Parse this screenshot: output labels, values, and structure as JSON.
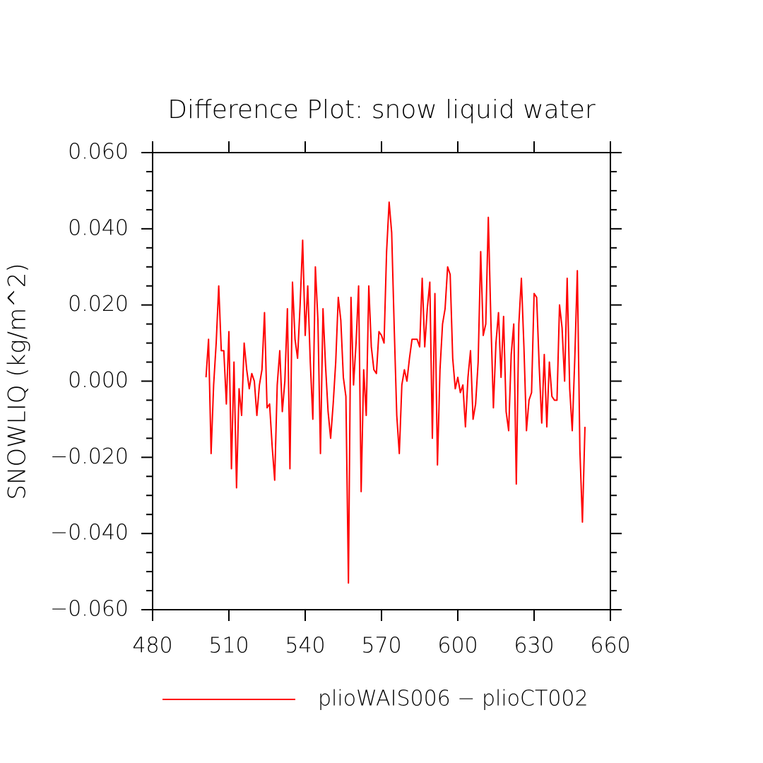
{
  "chart_data": {
    "type": "line",
    "title": "Difference Plot: snow liquid water",
    "y_label": "SNOWLIQ   (kg/m^2)",
    "x": [
      501,
      502,
      503,
      504,
      505,
      506,
      507,
      508,
      509,
      510,
      511,
      512,
      513,
      514,
      515,
      516,
      517,
      518,
      519,
      520,
      521,
      522,
      523,
      524,
      525,
      526,
      527,
      528,
      529,
      530,
      531,
      532,
      533,
      534,
      535,
      536,
      537,
      538,
      539,
      540,
      541,
      542,
      543,
      544,
      545,
      546,
      547,
      548,
      549,
      550,
      551,
      552,
      553,
      554,
      555,
      556,
      557,
      558,
      559,
      560,
      561,
      562,
      563,
      564,
      565,
      566,
      567,
      568,
      569,
      570,
      571,
      572,
      573,
      574,
      575,
      576,
      577,
      578,
      579,
      580,
      581,
      582,
      583,
      584,
      585,
      586,
      587,
      588,
      589,
      590,
      591,
      592,
      593,
      594,
      595,
      596,
      597,
      598,
      599,
      600,
      601,
      602,
      603,
      604,
      605,
      606,
      607,
      608,
      609,
      610,
      611,
      612,
      613,
      614,
      615,
      616,
      617,
      618,
      619,
      620,
      621,
      622,
      623,
      624,
      625,
      626,
      627,
      628,
      629,
      630,
      631,
      632,
      633,
      634,
      635,
      636,
      637,
      638,
      639,
      640,
      641,
      642,
      643,
      644,
      645,
      646,
      647,
      648,
      649,
      650
    ],
    "series": [
      {
        "name": "plioWAIS006 − plioCT002",
        "color": "#ff0000",
        "values": [
          0.001,
          0.011,
          -0.019,
          -0.001,
          0.01,
          0.025,
          0.008,
          0.008,
          -0.006,
          0.013,
          -0.023,
          0.005,
          -0.028,
          -0.002,
          -0.009,
          0.01,
          0.003,
          -0.002,
          0.002,
          0.0,
          -0.009,
          -0.001,
          0.003,
          0.018,
          -0.007,
          -0.006,
          -0.017,
          -0.026,
          -0.001,
          0.008,
          -0.008,
          0.0,
          0.019,
          -0.023,
          0.026,
          0.011,
          0.006,
          0.02,
          0.037,
          0.012,
          0.025,
          0.005,
          -0.01,
          0.03,
          0.016,
          -0.019,
          0.019,
          0.004,
          -0.008,
          -0.015,
          -0.006,
          0.005,
          0.022,
          0.016,
          0.001,
          -0.004,
          -0.053,
          0.022,
          -0.001,
          0.01,
          0.025,
          -0.029,
          0.003,
          -0.009,
          0.025,
          0.009,
          0.003,
          0.002,
          0.013,
          0.012,
          0.01,
          0.034,
          0.047,
          0.039,
          0.014,
          -0.009,
          -0.019,
          -0.001,
          0.003,
          0.0,
          0.006,
          0.011,
          0.011,
          0.011,
          0.009,
          0.027,
          0.009,
          0.019,
          0.026,
          -0.015,
          0.023,
          -0.022,
          0.003,
          0.015,
          0.019,
          0.03,
          0.028,
          0.006,
          -0.002,
          0.001,
          -0.003,
          -0.001,
          -0.012,
          0.001,
          0.008,
          -0.01,
          -0.006,
          0.005,
          0.034,
          0.012,
          0.015,
          0.043,
          0.016,
          -0.007,
          0.01,
          0.018,
          0.001,
          0.017,
          -0.008,
          -0.013,
          0.007,
          0.015,
          -0.027,
          0.015,
          0.027,
          0.009,
          -0.013,
          -0.005,
          -0.003,
          0.023,
          0.022,
          0.004,
          -0.011,
          0.007,
          -0.012,
          0.005,
          -0.004,
          -0.005,
          -0.005,
          0.02,
          0.014,
          0.0,
          0.027,
          -0.002,
          -0.013,
          0.006,
          0.029,
          -0.018,
          -0.037,
          -0.012
        ]
      }
    ],
    "xlim": [
      480,
      660
    ],
    "xticks": [
      480,
      510,
      540,
      570,
      600,
      630,
      660
    ],
    "ylim": [
      -0.06,
      0.06
    ],
    "yticks": [
      {
        "value": -0.06,
        "label": "−0.060"
      },
      {
        "value": -0.04,
        "label": "−0.040"
      },
      {
        "value": -0.02,
        "label": "−0.020"
      },
      {
        "value": 0,
        "label": "0.000"
      },
      {
        "value": 0.02,
        "label": "0.020"
      },
      {
        "value": 0.04,
        "label": "0.040"
      },
      {
        "value": 0.06,
        "label": "0.060"
      }
    ],
    "yminorticks": [
      -0.055,
      -0.05,
      -0.045,
      -0.035,
      -0.03,
      -0.025,
      -0.015,
      -0.01,
      -0.005,
      0.005,
      0.01,
      0.015,
      0.025,
      0.03,
      0.035,
      0.045,
      0.05,
      0.055
    ],
    "grid": false
  }
}
